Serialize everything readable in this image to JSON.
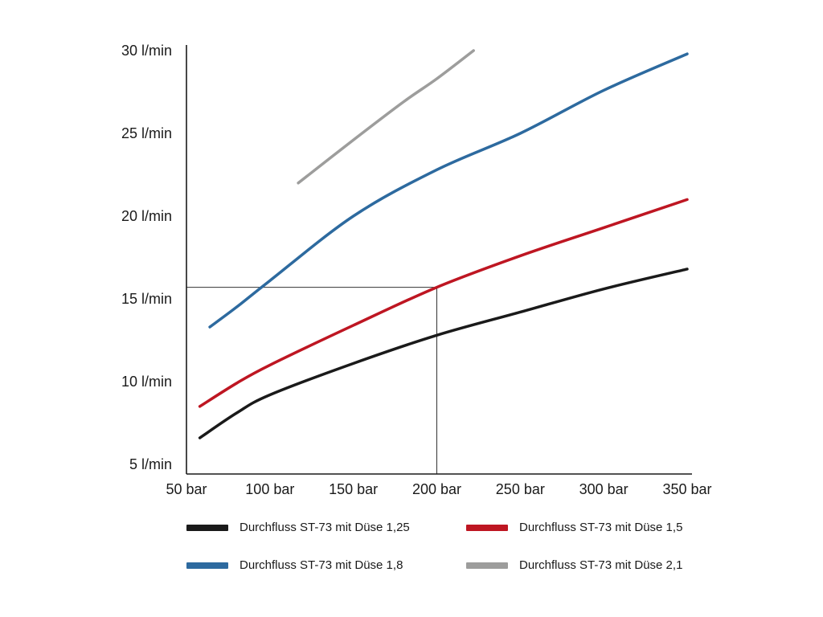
{
  "chart_data": {
    "type": "line",
    "title": "",
    "xlabel": "bar",
    "ylabel": "l/min",
    "xlim": [
      50,
      350
    ],
    "ylim": [
      5,
      30
    ],
    "grid": false,
    "legend_position": "bottom",
    "x_ticks": [
      {
        "value": 50,
        "label": "50 bar"
      },
      {
        "value": 100,
        "label": "100 bar"
      },
      {
        "value": 150,
        "label": "150 bar"
      },
      {
        "value": 200,
        "label": "200 bar"
      },
      {
        "value": 250,
        "label": "250 bar"
      },
      {
        "value": 300,
        "label": "300 bar"
      },
      {
        "value": 350,
        "label": "350 bar"
      }
    ],
    "y_ticks": [
      {
        "value": 5,
        "label": "5 l/min"
      },
      {
        "value": 10,
        "label": "10 l/min"
      },
      {
        "value": 15,
        "label": "15 l/min"
      },
      {
        "value": 20,
        "label": "20 l/min"
      },
      {
        "value": 25,
        "label": "25 l/min"
      },
      {
        "value": 30,
        "label": "30 l/min"
      }
    ],
    "series": [
      {
        "name": "Durchfluss ST-73 mit Düse 1,25",
        "color": "#1a1a1a",
        "points": [
          [
            58,
            6.6
          ],
          [
            80,
            8.1
          ],
          [
            100,
            9.2
          ],
          [
            150,
            11.1
          ],
          [
            200,
            12.8
          ],
          [
            250,
            14.2
          ],
          [
            300,
            15.6
          ],
          [
            350,
            16.8
          ]
        ]
      },
      {
        "name": "Durchfluss ST-73 mit Düse 1,5",
        "color": "#be1622",
        "points": [
          [
            58,
            8.5
          ],
          [
            80,
            9.9
          ],
          [
            100,
            11.0
          ],
          [
            150,
            13.4
          ],
          [
            200,
            15.7
          ],
          [
            250,
            17.6
          ],
          [
            300,
            19.3
          ],
          [
            350,
            21.0
          ]
        ]
      },
      {
        "name": "Durchfluss ST-73 mit Düse 1,8",
        "color": "#2d6a9f",
        "points": [
          [
            64,
            13.3
          ],
          [
            80,
            14.5
          ],
          [
            100,
            16.1
          ],
          [
            150,
            20.0
          ],
          [
            200,
            22.8
          ],
          [
            250,
            25.0
          ],
          [
            300,
            27.6
          ],
          [
            350,
            29.8
          ]
        ]
      },
      {
        "name": "Durchfluss ST-73 mit Düse 2,1",
        "color": "#9d9d9c",
        "points": [
          [
            117,
            22.0
          ],
          [
            150,
            24.6
          ],
          [
            180,
            26.9
          ],
          [
            200,
            28.3
          ],
          [
            222,
            30.0
          ]
        ]
      }
    ],
    "reference_lines": {
      "x_bar": 200,
      "y_lmin": 15.7,
      "color": "#333333"
    },
    "axis_color": "#1a1a1a"
  }
}
